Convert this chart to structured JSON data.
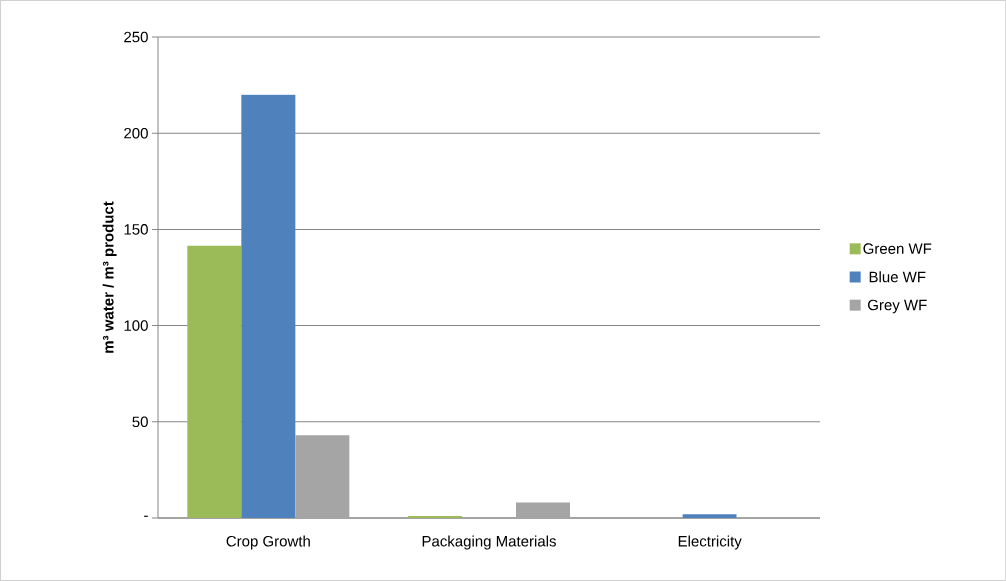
{
  "chart_data": {
    "type": "bar",
    "ylabel": "m³ water / m³ product",
    "categories": [
      "Crop Growth",
      "Packaging Materials",
      "Electricity"
    ],
    "series": [
      {
        "name": "Green WF",
        "color": "#9bbb59",
        "values": [
          141.5,
          1.1,
          0
        ]
      },
      {
        "name": "Blue WF",
        "color": "#4f81bd",
        "values": [
          220,
          0,
          2
        ]
      },
      {
        "name": "Grey WF",
        "color": "#a5a5a5",
        "values": [
          43,
          8,
          0
        ]
      }
    ],
    "ylim": [
      0,
      250
    ],
    "yticks": [
      {
        "value": 0,
        "label": "-"
      },
      50,
      100,
      150,
      200,
      250
    ],
    "grid": "y",
    "legend": "right"
  }
}
